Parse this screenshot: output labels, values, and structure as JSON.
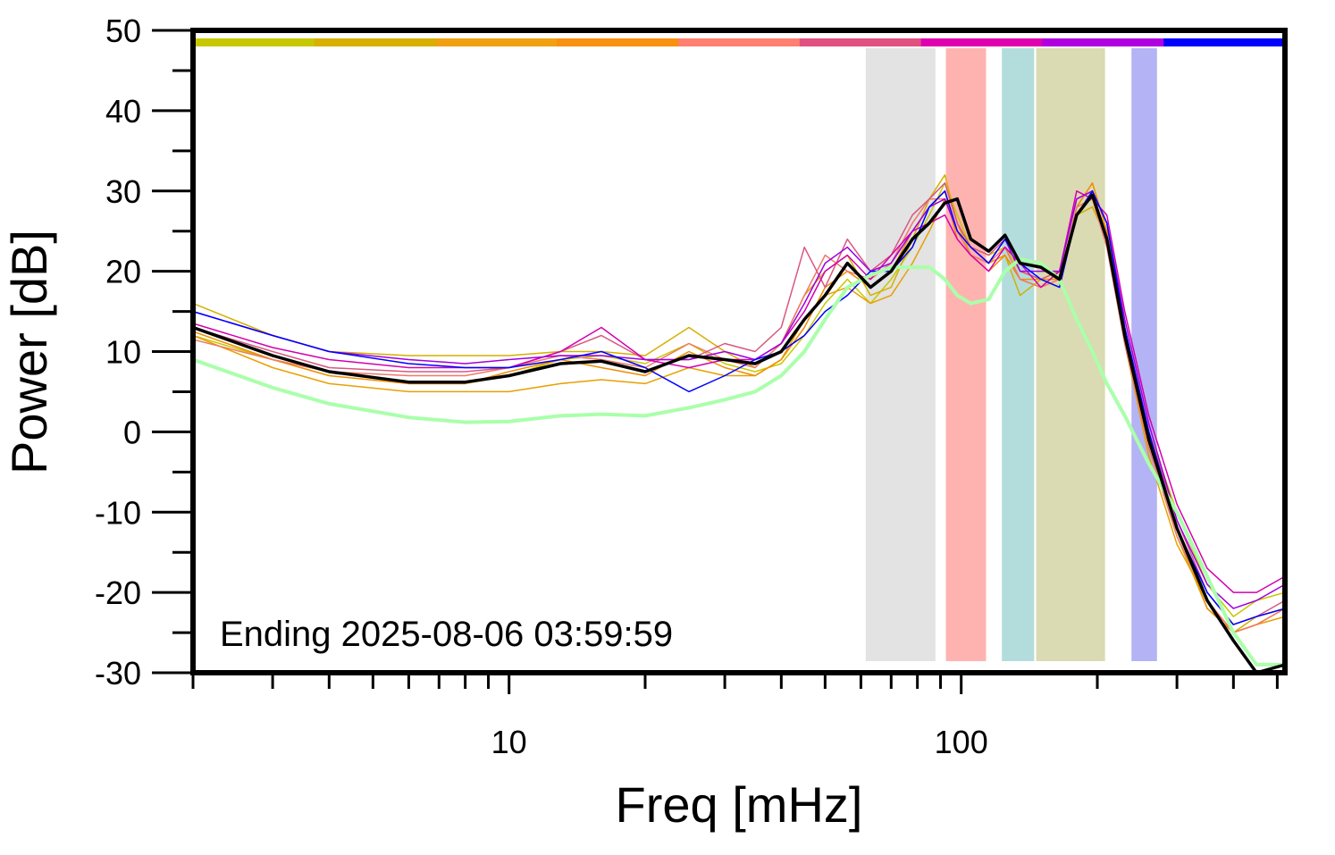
{
  "chart_data": {
    "type": "line",
    "xlabel": "Freq [mHz]",
    "ylabel": "Power [dB]",
    "annotation": "Ending 2025-08-06 03:59:59",
    "xscale": "log",
    "xlim": [
      2,
      520
    ],
    "ylim": [
      -30,
      50
    ],
    "xticks": [
      10,
      100
    ],
    "xminorticks": [
      2,
      3,
      4,
      5,
      6,
      7,
      8,
      9,
      20,
      30,
      40,
      50,
      60,
      70,
      80,
      90,
      200,
      300,
      400,
      500
    ],
    "yticks": [
      -30,
      -20,
      -10,
      0,
      10,
      20,
      30,
      40,
      50
    ],
    "yminorticks": [
      -25,
      -15,
      -5,
      5,
      15,
      25,
      35,
      45
    ],
    "strip_colors": [
      "#c8c800",
      "#d8b000",
      "#f0a010",
      "#f89010",
      "#ff8070",
      "#e05080",
      "#e000b0",
      "#b000e0",
      "#0000ff"
    ],
    "bands": [
      {
        "range": [
          61.5,
          87.7
        ],
        "color": "#e3e3e3"
      },
      {
        "range": [
          92.5,
          113.5
        ],
        "color": "#ffb3b0"
      },
      {
        "range": [
          123,
          145
        ],
        "color": "#b3dcdc"
      },
      {
        "range": [
          146.5,
          208
        ],
        "color": "#dadab3"
      },
      {
        "range": [
          238,
          271
        ],
        "color": "#b3b3f5"
      }
    ],
    "x": [
      2,
      3,
      4,
      6,
      8,
      10,
      13,
      16,
      20,
      25,
      30,
      35,
      40,
      45,
      50,
      56,
      63,
      70,
      78,
      85,
      92,
      98,
      105,
      115,
      125,
      135,
      150,
      165,
      180,
      195,
      210,
      230,
      260,
      300,
      350,
      400,
      450,
      520
    ],
    "series": [
      {
        "color": "#c8c800",
        "width": 1.5,
        "values": [
          12,
          9,
          7.5,
          6,
          6,
          7,
          9,
          9.5,
          8.5,
          11,
          8.5,
          7.5,
          8.5,
          12,
          16,
          19,
          16,
          19,
          23,
          27,
          31,
          27,
          23,
          22,
          23,
          20,
          19,
          18,
          28,
          29,
          25,
          13,
          0,
          -10,
          -19,
          -23,
          -21,
          -20
        ]
      },
      {
        "color": "#d4b000",
        "width": 1.5,
        "values": [
          16,
          12,
          10,
          9.5,
          9.5,
          9.5,
          10,
          10,
          9.5,
          13,
          10,
          8,
          11,
          17,
          20,
          22,
          17,
          18,
          24,
          29,
          32,
          26,
          22,
          21,
          22,
          17,
          19,
          18,
          27,
          28,
          24,
          12,
          -2,
          -13,
          -22,
          -25,
          -23,
          -22
        ]
      },
      {
        "color": "#e8a000",
        "width": 1.5,
        "values": [
          12,
          8,
          6,
          5,
          5,
          5,
          6,
          6.5,
          6,
          8,
          7,
          7,
          9,
          14,
          17,
          18,
          16,
          17,
          21,
          25,
          29,
          25,
          23,
          21,
          22,
          19,
          18,
          20,
          27,
          30,
          24,
          11,
          -3,
          -14,
          -21,
          -25,
          -24,
          -23
        ]
      },
      {
        "color": "#f08c00",
        "width": 1.5,
        "values": [
          12.5,
          9,
          7,
          6,
          6,
          7.5,
          9,
          8,
          7,
          10,
          8,
          7,
          9,
          13,
          18,
          20,
          18,
          20,
          25,
          28,
          30,
          24,
          22,
          20,
          22,
          19,
          19,
          19,
          28,
          31,
          25,
          13,
          0,
          -12,
          -22,
          -25,
          -24,
          -22
        ]
      },
      {
        "color": "#f07868",
        "width": 1.5,
        "values": [
          11.5,
          9,
          7.5,
          7,
          7,
          8,
          9.5,
          9,
          8,
          11,
          9,
          8,
          11,
          17,
          22,
          20,
          19,
          21,
          26,
          29,
          29,
          25,
          22,
          21,
          23,
          19,
          18,
          19,
          28,
          29,
          23,
          11,
          -2,
          -13,
          -21,
          -25,
          -24,
          -22
        ]
      },
      {
        "color": "#d85880",
        "width": 1.5,
        "values": [
          13,
          10,
          8,
          7.5,
          7.5,
          8,
          10,
          12,
          9,
          9,
          11,
          10,
          13,
          23,
          18,
          24,
          20,
          22,
          27,
          29,
          31,
          26,
          23,
          22,
          24,
          20,
          19,
          20,
          29,
          30,
          26,
          13,
          0,
          -11,
          -20,
          -24,
          -23,
          -21
        ]
      },
      {
        "color": "#d400b0",
        "width": 1.5,
        "values": [
          13.5,
          10.5,
          9,
          8,
          8,
          8,
          10,
          13,
          9,
          8,
          9,
          9,
          11,
          15,
          20,
          22,
          19,
          22,
          25,
          26,
          27,
          24,
          22,
          20,
          23,
          21,
          18,
          20,
          30,
          29,
          27,
          15,
          2,
          -9,
          -17,
          -20,
          -20,
          -18
        ]
      },
      {
        "color": "#a000e0",
        "width": 1.5,
        "values": [
          15,
          12,
          10,
          9,
          8.5,
          9,
          9.5,
          9.5,
          9,
          9,
          10,
          9,
          11,
          16,
          21,
          23,
          20,
          21,
          25,
          28,
          29,
          25,
          23,
          21,
          24,
          20,
          20,
          20,
          29,
          30,
          26,
          14,
          1,
          -11,
          -19,
          -22,
          -21,
          -19
        ]
      },
      {
        "color": "#0000ff",
        "width": 1.5,
        "values": [
          15,
          12,
          10,
          8.5,
          8,
          8,
          9,
          10,
          8,
          5,
          7,
          9,
          10,
          12,
          15,
          17,
          20,
          20,
          23,
          28,
          30,
          25,
          23,
          21,
          24,
          21,
          19,
          18,
          27,
          30,
          26,
          13,
          0,
          -12,
          -20,
          -24,
          -23,
          -22
        ]
      },
      {
        "color": "#aaffaa",
        "width": 4,
        "values": [
          9,
          5.5,
          3.5,
          1.8,
          1.2,
          1.3,
          2,
          2.2,
          2,
          3,
          4,
          5,
          7,
          10,
          14,
          18,
          19.5,
          20.5,
          20.5,
          20.5,
          19,
          17,
          16,
          16.5,
          20,
          21.5,
          21,
          19,
          14,
          10,
          6,
          2,
          -4,
          -10,
          -18,
          -25,
          -29,
          -29
        ]
      },
      {
        "color": "#000000",
        "width": 3.5,
        "values": [
          13,
          9.5,
          7.5,
          6.2,
          6.2,
          7,
          8.5,
          8.8,
          7.5,
          9.5,
          9,
          8.5,
          10,
          14,
          17,
          21,
          18,
          20,
          24,
          26,
          28.5,
          29,
          24,
          22.5,
          24.5,
          21,
          20.5,
          19,
          27,
          29.5,
          24,
          12,
          -1,
          -12,
          -21,
          -26,
          -30,
          -29
        ]
      }
    ]
  }
}
